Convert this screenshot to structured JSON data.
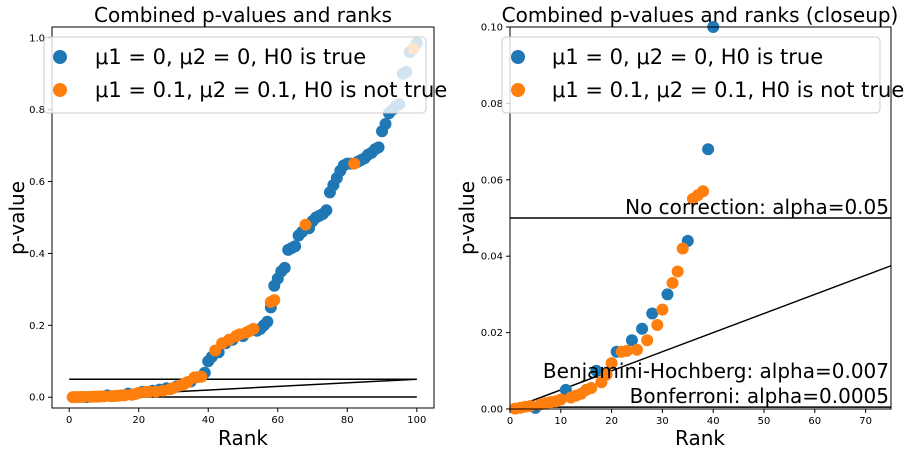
{
  "chart_data": [
    {
      "type": "scatter",
      "title": "Combined p-values and ranks",
      "xlabel": "Rank",
      "ylabel": "p-value",
      "xlim": [
        -4.95,
        104.95
      ],
      "ylim": [
        -0.03,
        1.03
      ],
      "xticks": [
        0,
        20,
        40,
        60,
        80,
        100
      ],
      "xtick_labels": [
        "0",
        "20",
        "40",
        "60",
        "80",
        "100"
      ],
      "yticks": [
        0.0,
        0.2,
        0.4,
        0.6,
        0.8,
        1.0
      ],
      "ytick_labels": [
        "0.0",
        "0.2",
        "0.4",
        "0.6",
        "0.8",
        "1.0"
      ],
      "legend": "top-left",
      "series": [
        {
          "name": "μ1 = 0, μ2 = 0, H0 is true",
          "color": "#1f77b4",
          "x": [
            5,
            11,
            17,
            21,
            24,
            26,
            28,
            31,
            35,
            39,
            40,
            41,
            43,
            45,
            47,
            50,
            54,
            55,
            56,
            57,
            58,
            59,
            60,
            61,
            62,
            63,
            64,
            65,
            66,
            67,
            69,
            70,
            71,
            72,
            73,
            74,
            75,
            76,
            77,
            78,
            79,
            80,
            81,
            83,
            84,
            85,
            86,
            87,
            88,
            89,
            90,
            91,
            92,
            93,
            94,
            95,
            96,
            97,
            98,
            99,
            100
          ],
          "y": [
            0.0003,
            0.005,
            0.01,
            0.015,
            0.018,
            0.021,
            0.025,
            0.03,
            0.044,
            0.068,
            0.1,
            0.112,
            0.125,
            0.15,
            0.16,
            0.17,
            0.185,
            0.19,
            0.2,
            0.21,
            0.25,
            0.31,
            0.33,
            0.35,
            0.36,
            0.41,
            0.415,
            0.42,
            0.45,
            0.46,
            0.47,
            0.49,
            0.5,
            0.505,
            0.51,
            0.52,
            0.57,
            0.59,
            0.61,
            0.63,
            0.645,
            0.65,
            0.65,
            0.655,
            0.66,
            0.665,
            0.675,
            0.68,
            0.69,
            0.695,
            0.74,
            0.76,
            0.79,
            0.8,
            0.81,
            0.815,
            0.9,
            0.905,
            0.96,
            0.97,
            0.985
          ]
        },
        {
          "name": "μ1 = 0.1, μ2 = 0.1, H0 is not true",
          "color": "#ff7f0e",
          "x": [
            1,
            2,
            3,
            4,
            6,
            7,
            8,
            9,
            10,
            12,
            13,
            14,
            15,
            16,
            18,
            19,
            20,
            22,
            23,
            25,
            27,
            29,
            30,
            32,
            33,
            34,
            36,
            37,
            38,
            42,
            44,
            46,
            48,
            49,
            51,
            52,
            53,
            58,
            59,
            68,
            82,
            99
          ],
          "y": [
            0.0001,
            0.0003,
            0.0006,
            0.0008,
            0.0012,
            0.0015,
            0.0018,
            0.002,
            0.0025,
            0.003,
            0.0035,
            0.004,
            0.005,
            0.0055,
            0.007,
            0.009,
            0.012,
            0.015,
            0.0152,
            0.0155,
            0.018,
            0.022,
            0.026,
            0.033,
            0.036,
            0.042,
            0.055,
            0.056,
            0.057,
            0.13,
            0.15,
            0.16,
            0.17,
            0.175,
            0.18,
            0.185,
            0.19,
            0.265,
            0.27,
            0.48,
            0.65,
            0.97
          ]
        }
      ],
      "lines": [
        {
          "kind": "horizontal",
          "y": 0.05
        },
        {
          "kind": "horizontal",
          "y": 0.0005
        },
        {
          "kind": "segment",
          "x": [
            0,
            100
          ],
          "y": [
            0,
            0.05
          ]
        }
      ]
    },
    {
      "type": "scatter",
      "title": "Combined p-values and ranks (closeup)",
      "xlabel": "Rank",
      "ylabel": "p-value",
      "xlim": [
        0,
        75
      ],
      "ylim": [
        0,
        0.1
      ],
      "xticks": [
        0,
        10,
        20,
        30,
        40,
        50,
        60,
        70
      ],
      "xtick_labels": [
        "0",
        "10",
        "20",
        "30",
        "40",
        "50",
        "60",
        "70"
      ],
      "yticks": [
        0.0,
        0.02,
        0.04,
        0.06,
        0.08,
        0.1
      ],
      "ytick_labels": [
        "0.00",
        "0.02",
        "0.04",
        "0.06",
        "0.08",
        "0.10"
      ],
      "legend": "top-left",
      "annotations": [
        {
          "text": "No correction: alpha=0.05",
          "y": 0.05
        },
        {
          "text": "Benjamini-Hochberg: alpha=0.007",
          "y": 0.007
        },
        {
          "text": "Bonferroni: alpha=0.0005",
          "y": 0.0005
        }
      ]
    }
  ]
}
